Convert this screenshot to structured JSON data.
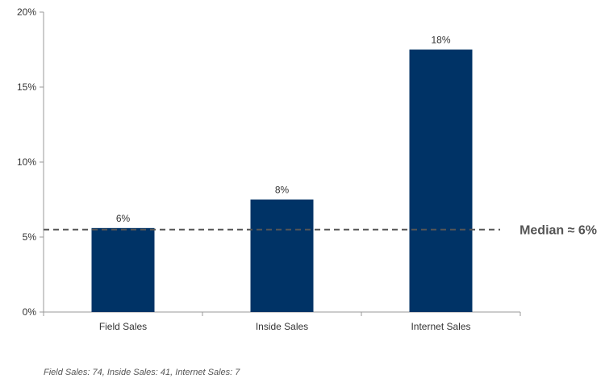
{
  "chart_data": {
    "type": "bar",
    "categories": [
      "Field Sales",
      "Inside Sales",
      "Internet Sales"
    ],
    "values": [
      5.6,
      7.5,
      17.5
    ],
    "data_labels": [
      "6%",
      "8%",
      "18%"
    ],
    "y_tick_labels": [
      "0%",
      "5%",
      "10%",
      "15%",
      "20%"
    ],
    "y_ticks": [
      0,
      5,
      10,
      15,
      20
    ],
    "ylim": [
      0,
      20
    ],
    "bar_color": "#003366",
    "grid": false,
    "reference_line": {
      "value": 5.5,
      "label": "Median ≈ 6%",
      "style": "dashed",
      "color": "#555555"
    }
  },
  "footnote": "Field Sales: 74, Inside Sales: 41, Internet Sales: 7"
}
